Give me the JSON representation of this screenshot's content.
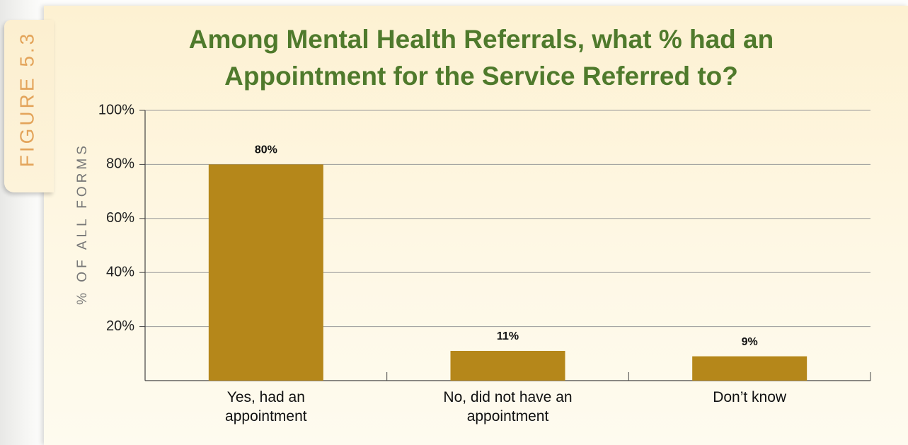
{
  "chart_data": {
    "type": "bar",
    "side_label": "FIGURE 5.3",
    "title": "Among Mental Health Referrals, what % had an Appointment for the Service Referred to?",
    "ylabel": "% OF ALL FORMS",
    "categories": [
      "Yes, had an appointment",
      "No, did not have an appointment",
      "Don’t know"
    ],
    "values": [
      80,
      11,
      9
    ],
    "value_labels": [
      "80%",
      "11%",
      "9%"
    ],
    "color": "#b5871a",
    "ylim": [
      0,
      100
    ],
    "yticks": [
      {
        "value": 20,
        "label": "20%"
      },
      {
        "value": 40,
        "label": "40%"
      },
      {
        "value": 60,
        "label": "60%"
      },
      {
        "value": 80,
        "label": "80%"
      },
      {
        "value": 100,
        "label": "100%"
      }
    ],
    "grid": true
  }
}
